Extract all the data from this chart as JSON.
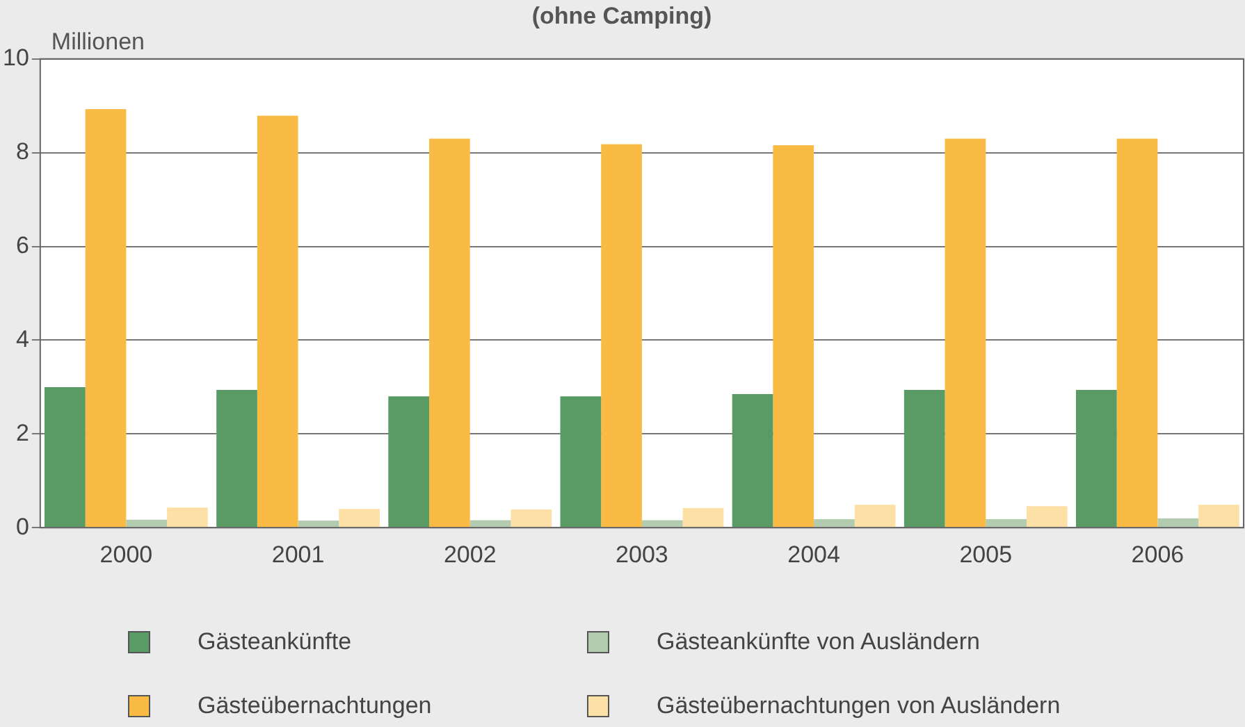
{
  "chart_data": {
    "type": "bar",
    "title": "(ohne Camping)",
    "ylabel": "Millionen",
    "categories": [
      "2000",
      "2001",
      "2002",
      "2003",
      "2004",
      "2005",
      "2006"
    ],
    "series": [
      {
        "name": "Gästeankünfte",
        "color": "#5a9a64",
        "values": [
          3.0,
          2.94,
          2.8,
          2.8,
          2.85,
          2.94,
          2.94
        ]
      },
      {
        "name": "Gästeübernachtungen",
        "color": "#f9bb43",
        "values": [
          8.93,
          8.79,
          8.3,
          8.18,
          8.16,
          8.3,
          8.3
        ]
      },
      {
        "name": "Gästeankünfte von Ausländern",
        "color": "#b3cbaf",
        "values": [
          0.17,
          0.15,
          0.16,
          0.16,
          0.18,
          0.18,
          0.2
        ]
      },
      {
        "name": "Gästeübernachtungen von Ausländern",
        "color": "#fde0a6",
        "values": [
          0.43,
          0.4,
          0.39,
          0.42,
          0.49,
          0.46,
          0.49
        ]
      }
    ],
    "ylim": [
      0,
      10
    ],
    "yticks": [
      0,
      2,
      4,
      6,
      8,
      10
    ],
    "grid": "y",
    "legend": "bottom"
  }
}
